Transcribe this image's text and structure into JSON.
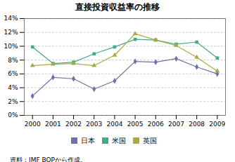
{
  "chart_data": {
    "type": "line",
    "title": "直接投資収益率の推移",
    "caption": "資料：IMF BOPから作成。",
    "x": [
      2000,
      2001,
      2002,
      2003,
      2004,
      2005,
      2006,
      2007,
      2008,
      2009
    ],
    "series": [
      {
        "name": "日本",
        "color": "#7070aa",
        "marker": "diamond",
        "values": [
          2.8,
          5.5,
          5.3,
          3.8,
          5.0,
          7.8,
          7.7,
          8.2,
          7.0,
          6.0
        ]
      },
      {
        "name": "米国",
        "color": "#44aa88",
        "marker": "square",
        "values": [
          9.9,
          7.5,
          7.7,
          8.9,
          9.9,
          11.0,
          10.9,
          10.3,
          10.6,
          8.3
        ]
      },
      {
        "name": "英国",
        "color": "#aaaa44",
        "marker": "triangle",
        "values": [
          7.2,
          7.4,
          7.5,
          7.2,
          8.7,
          11.8,
          10.9,
          10.1,
          8.4,
          6.4
        ]
      }
    ],
    "xlim": [
      1999.6,
      2009.4
    ],
    "xticks": [
      2000,
      2001,
      2002,
      2003,
      2004,
      2005,
      2006,
      2007,
      2008,
      2009
    ],
    "ylim": [
      0,
      14
    ],
    "yticks": [
      {
        "value": 0,
        "label": "0%"
      },
      {
        "value": 2,
        "label": "2%"
      },
      {
        "value": 4,
        "label": "4%"
      },
      {
        "value": 6,
        "label": "6%"
      },
      {
        "value": 8,
        "label": "8%"
      },
      {
        "value": 10,
        "label": "10%"
      },
      {
        "value": 12,
        "label": "12%"
      },
      {
        "value": 14,
        "label": "14%"
      }
    ],
    "grid": "y",
    "legend": "lower right"
  }
}
